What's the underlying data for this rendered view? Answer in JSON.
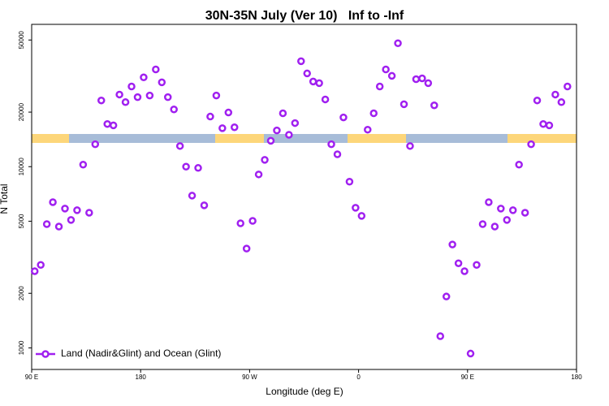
{
  "chart_data": {
    "type": "scatter",
    "title": "30N-35N July (Ver 10)   Inf to -Inf",
    "x_label": "Longitude (deg E)",
    "y_label": "N Total",
    "log_y": true,
    "legend": "bottom-left",
    "xlim": [
      90,
      540
    ],
    "xticks": [
      {
        "value": 90,
        "label": "90 E"
      },
      180,
      {
        "value": 270,
        "label": "90 W"
      },
      {
        "value": 360,
        "label": "0"
      },
      {
        "value": 450,
        "label": "90 E"
      },
      {
        "value": 540,
        "label": "180"
      }
    ],
    "ylim": [
      760,
      61000
    ],
    "yticks": [
      1000,
      2000,
      5000,
      10000,
      20000,
      50000
    ],
    "series": [
      {
        "name": "Land (Nadir&Glint) and Ocean (Glint)",
        "color": "#a020f0",
        "x": [
          92.5,
          97.5,
          102.5,
          107.5,
          112.5,
          117.5,
          122.5,
          127.5,
          132.5,
          137.5,
          142.5,
          147.5,
          152.5,
          157.5,
          162.5,
          167.5,
          172.5,
          177.5,
          182.5,
          187.5,
          192.5,
          197.5,
          202.5,
          207.5,
          212.5,
          217.5,
          222.5,
          227.5,
          232.5,
          237.5,
          242.5,
          247.5,
          252.5,
          257.5,
          262.5,
          267.5,
          272.5,
          277.5,
          282.5,
          287.5,
          292.5,
          297.5,
          302.5,
          307.5,
          312.5,
          317.5,
          322.5,
          327.5,
          332.5,
          337.5,
          342.5,
          347.5,
          352.5,
          357.5,
          362.5,
          367.5,
          372.5,
          377.5,
          382.5,
          387.5,
          392.5,
          397.5,
          402.5,
          407.5,
          412.5,
          417.5,
          422.5,
          427.5,
          432.5,
          437.5,
          442.5,
          447.5,
          452.5,
          457.5,
          462.5,
          467.5,
          472.5,
          477.5,
          482.5,
          487.5,
          492.5,
          497.5,
          502.5,
          507.5,
          512.5,
          517.5,
          522.5,
          527.5,
          532.5
        ],
        "values": [
          2650,
          2870,
          4820,
          6370,
          4670,
          5870,
          5080,
          5750,
          10260,
          5570,
          13300,
          23200,
          17200,
          16900,
          25000,
          22700,
          27700,
          24200,
          31100,
          24700,
          34400,
          29200,
          24200,
          20700,
          13000,
          10000,
          6920,
          9840,
          6120,
          18900,
          24700,
          16300,
          19900,
          16500,
          4870,
          3530,
          5020,
          9060,
          10900,
          13900,
          15850,
          19700,
          15000,
          17400,
          38200,
          32700,
          29500,
          28900,
          23500,
          13300,
          11700,
          18700,
          8260,
          5930,
          5350,
          16000,
          19700,
          27700,
          34400,
          31700,
          48000,
          22100,
          13000,
          30400,
          30700,
          28900,
          21800,
          1160,
          1920,
          3720,
          2930,
          2650,
          930,
          2870,
          4820,
          6370,
          4670,
          5870,
          5080,
          5750,
          10260,
          5570,
          13300,
          23200,
          17200,
          16900,
          25000,
          22700,
          27700
        ]
      }
    ]
  }
}
